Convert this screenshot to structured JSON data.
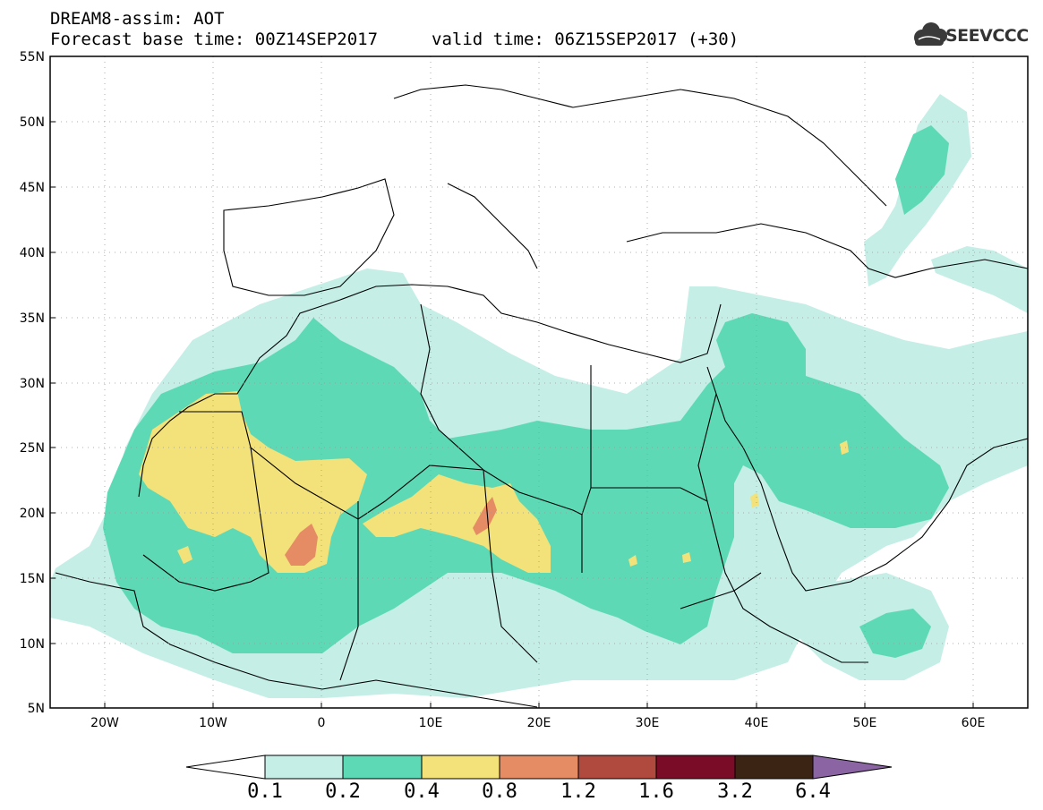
{
  "header": {
    "title_line1": "DREAM8-assim: AOT",
    "title_line2": "Forecast base time: 00Z14SEP2017",
    "valid_time": "valid time: 06Z15SEP2017 (+30)",
    "logo_text": "SEEVCCC"
  },
  "map": {
    "projection": "lat-lon",
    "extent": {
      "lon_min": -25,
      "lon_max": 65,
      "lat_min": 5,
      "lat_max": 55
    },
    "graticule": "dotted",
    "lat_ticks": [
      "5N",
      "10N",
      "15N",
      "20N",
      "25N",
      "30N",
      "35N",
      "40N",
      "45N",
      "50N",
      "55N"
    ],
    "lon_ticks": [
      "20W",
      "10W",
      "0",
      "10E",
      "20E",
      "30E",
      "40E",
      "50E",
      "60E"
    ],
    "dust_regions": [
      {
        "level": "0.1-0.2",
        "desc": "broad outer dust envelope North Africa / Arabia"
      },
      {
        "level": "0.2-0.4",
        "desc": "Sahara belt and Arabian Peninsula"
      },
      {
        "level": "0.4-0.8",
        "desc": "Western Sahara, Mali/Algeria, Niger-Chad"
      },
      {
        "level": "0.8-1.2",
        "desc": "Mali maximum and Chad/Libya border"
      }
    ]
  },
  "colorbar": {
    "labels": [
      "0.1",
      "0.2",
      "0.4",
      "0.8",
      "1.2",
      "1.6",
      "3.2",
      "6.4"
    ],
    "colors": [
      "#ffffff",
      "#c4eee6",
      "#5dd9b5",
      "#f3e17a",
      "#e68c64",
      "#b0493e",
      "#7b0c27",
      "#3c2415",
      "#8b64a3"
    ]
  }
}
